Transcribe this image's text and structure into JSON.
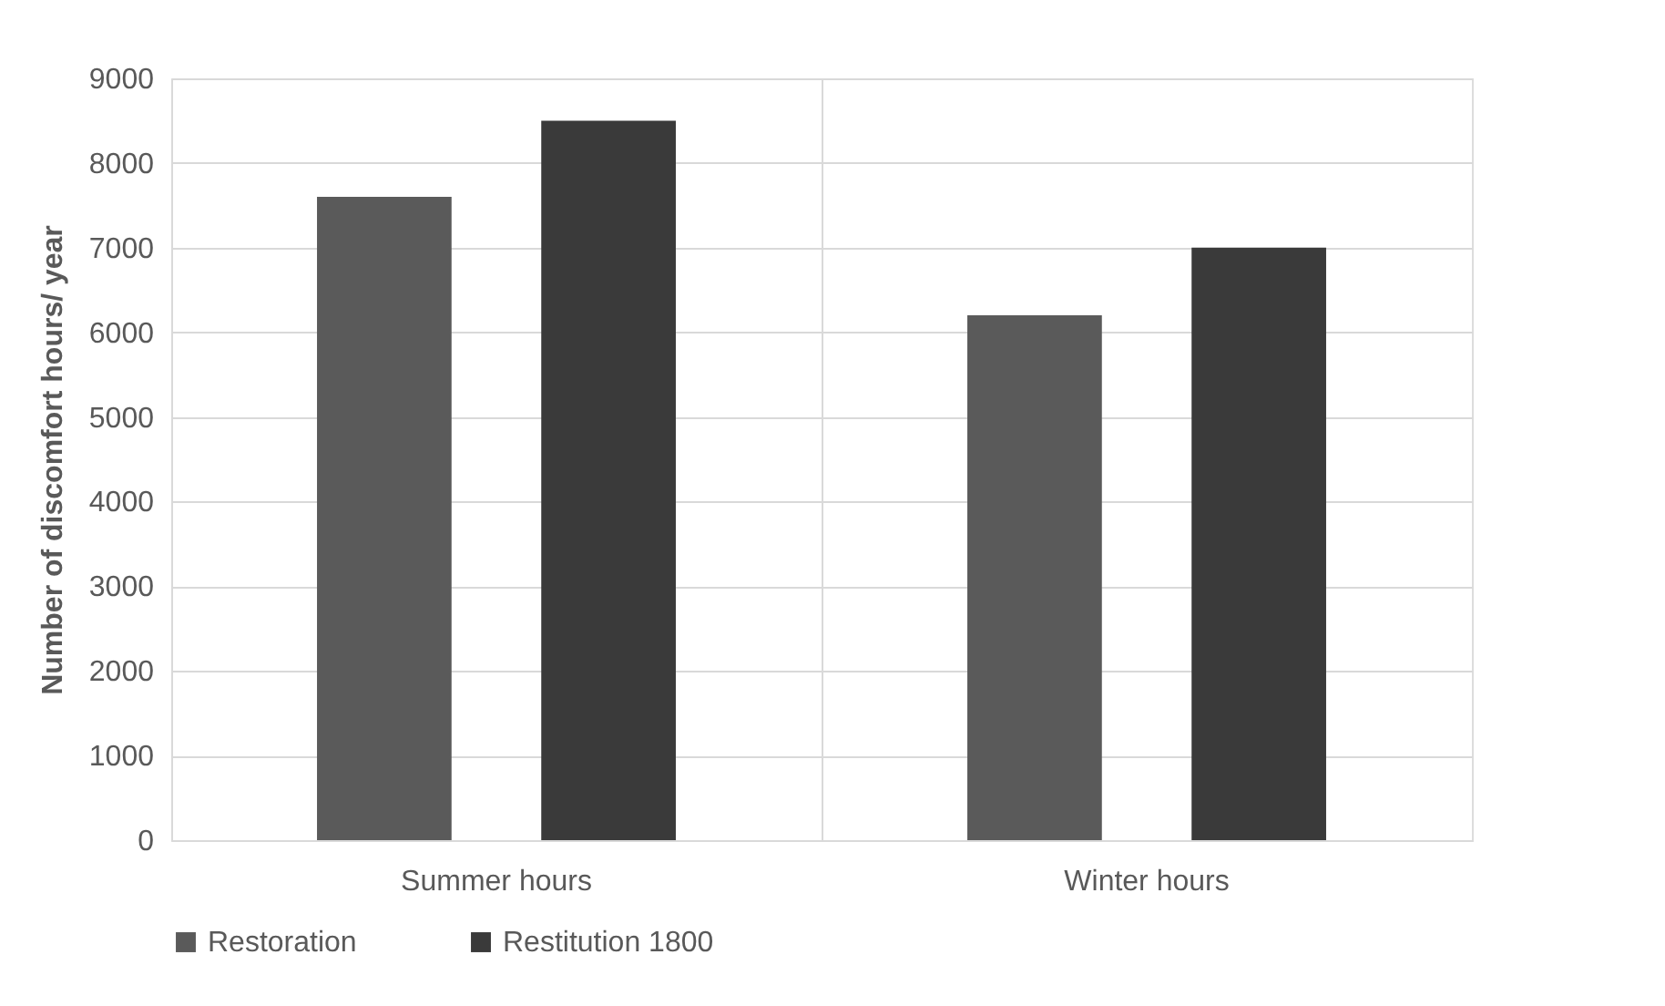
{
  "chart_data": {
    "type": "bar",
    "ylabel": "Number of discomfort hours/ year",
    "categories": [
      "Summer hours",
      "Winter hours"
    ],
    "series": [
      {
        "name": "Restoration",
        "color": "#5a5a5a",
        "values": [
          7600,
          6200
        ]
      },
      {
        "name": "Restitution 1800",
        "color": "#3a3a3a",
        "values": [
          8500,
          7000
        ]
      }
    ],
    "ylim": [
      0,
      9000
    ],
    "yticks": [
      0,
      1000,
      2000,
      3000,
      4000,
      5000,
      6000,
      7000,
      8000,
      9000
    ],
    "grid": true,
    "legend": "bottom"
  }
}
